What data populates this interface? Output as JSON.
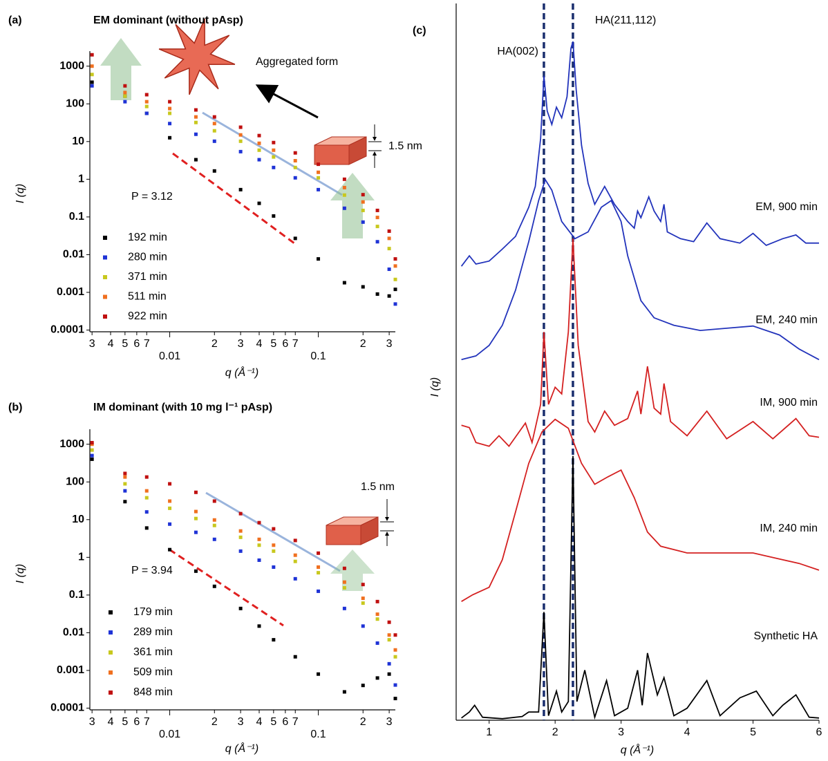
{
  "chart_data": [
    {
      "type": "scatter",
      "panel_label": "(a)",
      "title": "EM dominant (without pAsp)",
      "x_label": "q (Å⁻¹)",
      "y_label": "I (q)",
      "log_x": true,
      "log_y": true,
      "xlim": [
        0.0029,
        0.33
      ],
      "ylim": [
        9e-05,
        2500
      ],
      "xticks": [
        {
          "value": 0.003,
          "label": "3"
        },
        {
          "value": 0.004,
          "label": "4"
        },
        {
          "value": 0.005,
          "label": "5"
        },
        {
          "value": 0.006,
          "label": "6"
        },
        {
          "value": 0.007,
          "label": "7"
        },
        0.01,
        {
          "value": 0.02,
          "label": "2"
        },
        {
          "value": 0.03,
          "label": "3"
        },
        {
          "value": 0.04,
          "label": "4"
        },
        {
          "value": 0.05,
          "label": "5"
        },
        {
          "value": 0.06,
          "label": "6"
        },
        {
          "value": 0.07,
          "label": "7"
        },
        0.1,
        {
          "value": 0.2,
          "label": "2"
        },
        {
          "value": 0.3,
          "label": "3"
        }
      ],
      "yticks": [
        1000,
        100,
        10,
        1,
        0.1,
        0.01,
        0.001,
        0.0001
      ],
      "x": [
        0.003,
        0.005,
        0.007,
        0.01,
        0.015,
        0.02,
        0.03,
        0.04,
        0.05,
        0.07,
        0.1,
        0.15,
        0.2,
        0.25,
        0.3,
        0.33
      ],
      "series": [
        {
          "name": "192 min",
          "color": "#000000",
          "values": [
            375,
            160,
            56,
            12.6,
            3.3,
            1.66,
            0.53,
            0.23,
            0.106,
            0.027,
            0.0077,
            0.0018,
            0.0014,
            0.0009,
            0.0008,
            0.0012
          ]
        },
        {
          "name": "280 min",
          "color": "#1f33d6",
          "values": [
            300,
            114,
            56,
            30,
            15.6,
            10.2,
            5.4,
            3.3,
            2.05,
            1.09,
            0.53,
            0.17,
            0.073,
            0.022,
            0.0041,
            0.00049
          ]
        },
        {
          "name": "371 min",
          "color": "#c8c81e",
          "values": [
            600,
            160,
            85,
            56,
            32,
            19.3,
            10.2,
            5.9,
            3.9,
            2.05,
            1.09,
            0.38,
            0.149,
            0.056,
            0.0145,
            0.0022
          ]
        },
        {
          "name": "511 min",
          "color": "#f07020",
          "values": [
            1000,
            200,
            114,
            75,
            45,
            30,
            15,
            9,
            5.9,
            3.1,
            1.53,
            0.6,
            0.25,
            0.097,
            0.027,
            0.005
          ]
        },
        {
          "name": "922 min",
          "color": "#c01010",
          "values": [
            2000,
            300,
            175,
            114,
            69,
            45,
            24,
            14.4,
            9.4,
            5,
            2.5,
            1,
            0.39,
            0.149,
            0.042,
            0.0077
          ]
        }
      ],
      "annotations": [
        "Aggregated form",
        "1.5 nm",
        "P = 3.12"
      ]
    },
    {
      "type": "scatter",
      "panel_label": "(b)",
      "title": "IM dominant (with 10 mg l⁻¹ pAsp)",
      "x_label": "q (Å⁻¹)",
      "y_label": "I (q)",
      "log_x": true,
      "log_y": true,
      "xlim": [
        0.0029,
        0.33
      ],
      "ylim": [
        9e-05,
        2500
      ],
      "xticks": [
        {
          "value": 0.003,
          "label": "3"
        },
        {
          "value": 0.004,
          "label": "4"
        },
        {
          "value": 0.005,
          "label": "5"
        },
        {
          "value": 0.006,
          "label": "6"
        },
        {
          "value": 0.007,
          "label": "7"
        },
        0.01,
        {
          "value": 0.02,
          "label": "2"
        },
        {
          "value": 0.03,
          "label": "3"
        },
        {
          "value": 0.04,
          "label": "4"
        },
        {
          "value": 0.05,
          "label": "5"
        },
        {
          "value": 0.06,
          "label": "6"
        },
        {
          "value": 0.07,
          "label": "7"
        },
        0.1,
        {
          "value": 0.2,
          "label": "2"
        },
        {
          "value": 0.3,
          "label": "3"
        }
      ],
      "yticks": [
        1000,
        100,
        10,
        1,
        0.1,
        0.01,
        0.001,
        0.0001
      ],
      "x": [
        0.003,
        0.005,
        0.007,
        0.01,
        0.015,
        0.02,
        0.03,
        0.04,
        0.05,
        0.07,
        0.1,
        0.15,
        0.2,
        0.25,
        0.3,
        0.33
      ],
      "series": [
        {
          "name": "179 min",
          "color": "#000000",
          "values": [
            400,
            30,
            6,
            1.6,
            0.43,
            0.17,
            0.044,
            0.015,
            0.0065,
            0.0023,
            0.0008,
            0.00027,
            0.0004,
            0.00063,
            0.0008,
            0.00018
          ]
        },
        {
          "name": "289 min",
          "color": "#1f33d6",
          "values": [
            500,
            58,
            16,
            7.6,
            4.6,
            3,
            1.46,
            0.84,
            0.55,
            0.27,
            0.126,
            0.044,
            0.015,
            0.0053,
            0.0015,
            0.00041
          ]
        },
        {
          "name": "361 min",
          "color": "#c8c81e",
          "values": [
            700,
            89,
            38,
            20,
            10.7,
            7,
            3.4,
            2.1,
            1.46,
            0.78,
            0.39,
            0.155,
            0.061,
            0.023,
            0.0065,
            0.0023
          ]
        },
        {
          "name": "509 min",
          "color": "#f07020",
          "values": [
            1000,
            135,
            58,
            31,
            16.4,
            9.8,
            5,
            3,
            2.1,
            1.14,
            0.55,
            0.22,
            0.082,
            0.031,
            0.0087,
            0.0035
          ]
        },
        {
          "name": "848 min",
          "color": "#c01010",
          "values": [
            1100,
            168,
            135,
            89,
            53,
            31,
            14.4,
            8.3,
            5.7,
            2.8,
            1.29,
            0.51,
            0.19,
            0.067,
            0.019,
            0.0087
          ]
        }
      ],
      "annotations": [
        "1.5 nm",
        "P = 3.94"
      ]
    },
    {
      "type": "line",
      "panel_label": "(c)",
      "x_label": "q (Å⁻¹)",
      "y_label": "I (q)",
      "xlim": [
        0.5,
        6
      ],
      "ylim": [
        4,
        100
      ],
      "xticks": [
        1,
        2,
        3,
        4,
        5,
        6
      ],
      "reference_lines": [
        {
          "x": 1.83,
          "label": "HA(002)",
          "color": "#1a2e6e"
        },
        {
          "x": 2.27,
          "label": "HA(211,112)",
          "color": "#1a2e6e"
        }
      ],
      "series": [
        {
          "name": "EM, 900 min",
          "color": "#2233bb",
          "x": [
            0.58,
            0.7,
            0.8,
            1.0,
            1.2,
            1.4,
            1.6,
            1.7,
            1.78,
            1.83,
            1.88,
            1.95,
            2.02,
            2.1,
            2.18,
            2.24,
            2.27,
            2.32,
            2.4,
            2.5,
            2.6,
            2.75,
            2.9,
            3.1,
            3.2,
            3.25,
            3.3,
            3.42,
            3.5,
            3.6,
            3.65,
            3.7,
            3.9,
            4.1,
            4.3,
            4.5,
            4.8,
            5.0,
            5.2,
            5.45,
            5.65,
            5.8,
            6.0
          ],
          "values": [
            64.8,
            66.2,
            65.1,
            65.5,
            67.1,
            68.8,
            72.7,
            75.5,
            81.9,
            90.3,
            85.6,
            83.8,
            86.1,
            84.7,
            87.5,
            94.0,
            94.9,
            88.4,
            81.0,
            75.9,
            73.1,
            75.5,
            73.1,
            70.8,
            69.9,
            72.2,
            71.3,
            74.1,
            72.2,
            70.8,
            73.1,
            69.4,
            68.5,
            68.1,
            70.6,
            68.5,
            67.9,
            69.2,
            67.6,
            68.5,
            69.0,
            67.9,
            67.9
          ]
        },
        {
          "name": "EM, 240 min",
          "color": "#2233bb",
          "x": [
            0.58,
            0.8,
            1.0,
            1.2,
            1.4,
            1.6,
            1.75,
            1.85,
            1.95,
            2.1,
            2.3,
            2.5,
            2.7,
            2.85,
            3.0,
            3.1,
            3.3,
            3.5,
            3.8,
            4.2,
            4.6,
            5.0,
            5.4,
            5.7,
            6.0
          ],
          "values": [
            52.3,
            52.8,
            54.2,
            56.9,
            61.6,
            68.1,
            73.6,
            76.4,
            75.0,
            70.8,
            68.5,
            69.4,
            72.7,
            73.6,
            70.8,
            66.2,
            60.2,
            57.9,
            56.9,
            56.2,
            56.5,
            56.8,
            55.6,
            53.7,
            52.3
          ]
        },
        {
          "name": "IM, 900 min",
          "color": "#d42020",
          "x": [
            0.58,
            0.7,
            0.8,
            1.0,
            1.15,
            1.3,
            1.55,
            1.65,
            1.78,
            1.83,
            1.9,
            2.0,
            2.1,
            2.2,
            2.27,
            2.35,
            2.5,
            2.6,
            2.75,
            2.9,
            3.1,
            3.25,
            3.3,
            3.4,
            3.5,
            3.6,
            3.65,
            3.75,
            4.0,
            4.3,
            4.6,
            5.0,
            5.3,
            5.65,
            5.85,
            6.0
          ],
          "values": [
            43.5,
            43.2,
            41.2,
            40.7,
            42.1,
            40.7,
            43.8,
            41.2,
            46.3,
            56.0,
            46.3,
            48.6,
            47.7,
            56.0,
            68.5,
            54.2,
            44.0,
            42.6,
            45.4,
            43.5,
            44.4,
            48.1,
            45.0,
            51.4,
            45.8,
            45.0,
            49.1,
            44.0,
            42.1,
            45.4,
            41.7,
            44.0,
            41.7,
            44.4,
            42.1,
            41.9
          ]
        },
        {
          "name": "IM, 240 min",
          "color": "#d42020",
          "x": [
            0.58,
            0.75,
            1.0,
            1.2,
            1.4,
            1.6,
            1.8,
            2.0,
            2.2,
            2.4,
            2.6,
            2.8,
            3.0,
            3.2,
            3.4,
            3.6,
            4.0,
            4.5,
            5.0,
            5.4,
            5.7,
            6.0
          ],
          "values": [
            19.9,
            20.8,
            21.8,
            25.5,
            31.9,
            38.4,
            42.6,
            44.3,
            43.1,
            38.4,
            35.6,
            36.6,
            37.5,
            33.8,
            29.2,
            27.3,
            26.4,
            26.4,
            26.4,
            25.6,
            25.0,
            24.1
          ]
        },
        {
          "name": "Synthetic HA",
          "color": "#000000",
          "x": [
            0.58,
            0.7,
            0.78,
            0.9,
            1.2,
            1.5,
            1.6,
            1.75,
            1.83,
            1.9,
            2.02,
            2.1,
            2.2,
            2.27,
            2.33,
            2.45,
            2.6,
            2.78,
            2.9,
            3.1,
            3.25,
            3.32,
            3.4,
            3.55,
            3.65,
            3.8,
            4.0,
            4.3,
            4.5,
            4.8,
            5.05,
            5.3,
            5.45,
            5.65,
            5.85,
            6.0
          ],
          "values": [
            4.3,
            5.1,
            6.0,
            4.4,
            4.2,
            4.5,
            5.1,
            5.1,
            18.5,
            4.6,
            7.9,
            5.1,
            6.5,
            39.4,
            6.5,
            10.7,
            4.4,
            9.3,
            4.6,
            5.6,
            10.7,
            6.0,
            13.0,
            7.4,
            9.7,
            4.6,
            5.6,
            9.3,
            4.6,
            7.0,
            7.9,
            4.6,
            6.0,
            7.4,
            4.4,
            4.3
          ]
        }
      ]
    }
  ]
}
